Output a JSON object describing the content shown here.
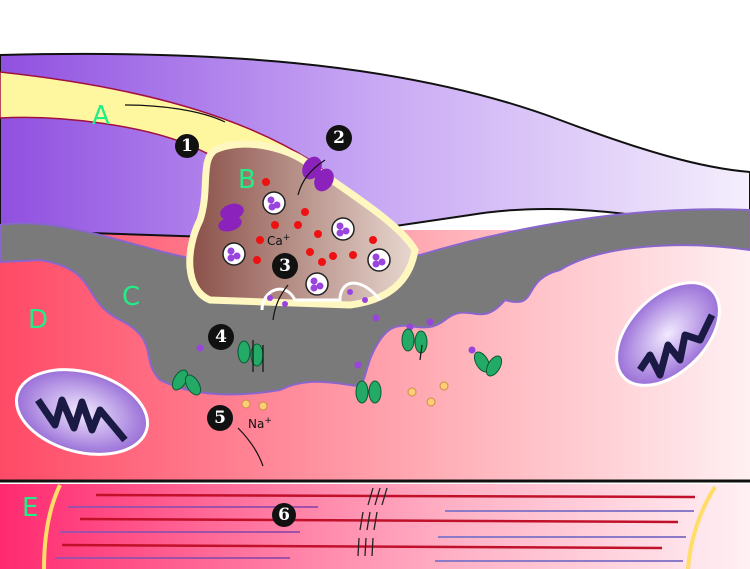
{
  "labels": {
    "A": "A",
    "B": "B",
    "C": "C",
    "D": "D",
    "E": "E"
  },
  "steps": [
    "1",
    "2",
    "3",
    "4",
    "5",
    "6"
  ],
  "ions": {
    "calcium": "Ca",
    "calcium_charge": "+",
    "sodium": "Na",
    "sodium_charge": "+"
  },
  "colors": {
    "axon": "#b28cf0",
    "axon_terminal": "#8a5a52",
    "myelin": "#fff4a0",
    "synaptic_cleft": "#6e6e6e",
    "muscle": "#ff5a74",
    "fiber": "#ff4d88",
    "label": "#22ee88",
    "calcium_ion": "#ee1111",
    "vesicle": "#9944dd",
    "receptor": "#22aa66",
    "sodium_ion": "#ffcc77"
  }
}
